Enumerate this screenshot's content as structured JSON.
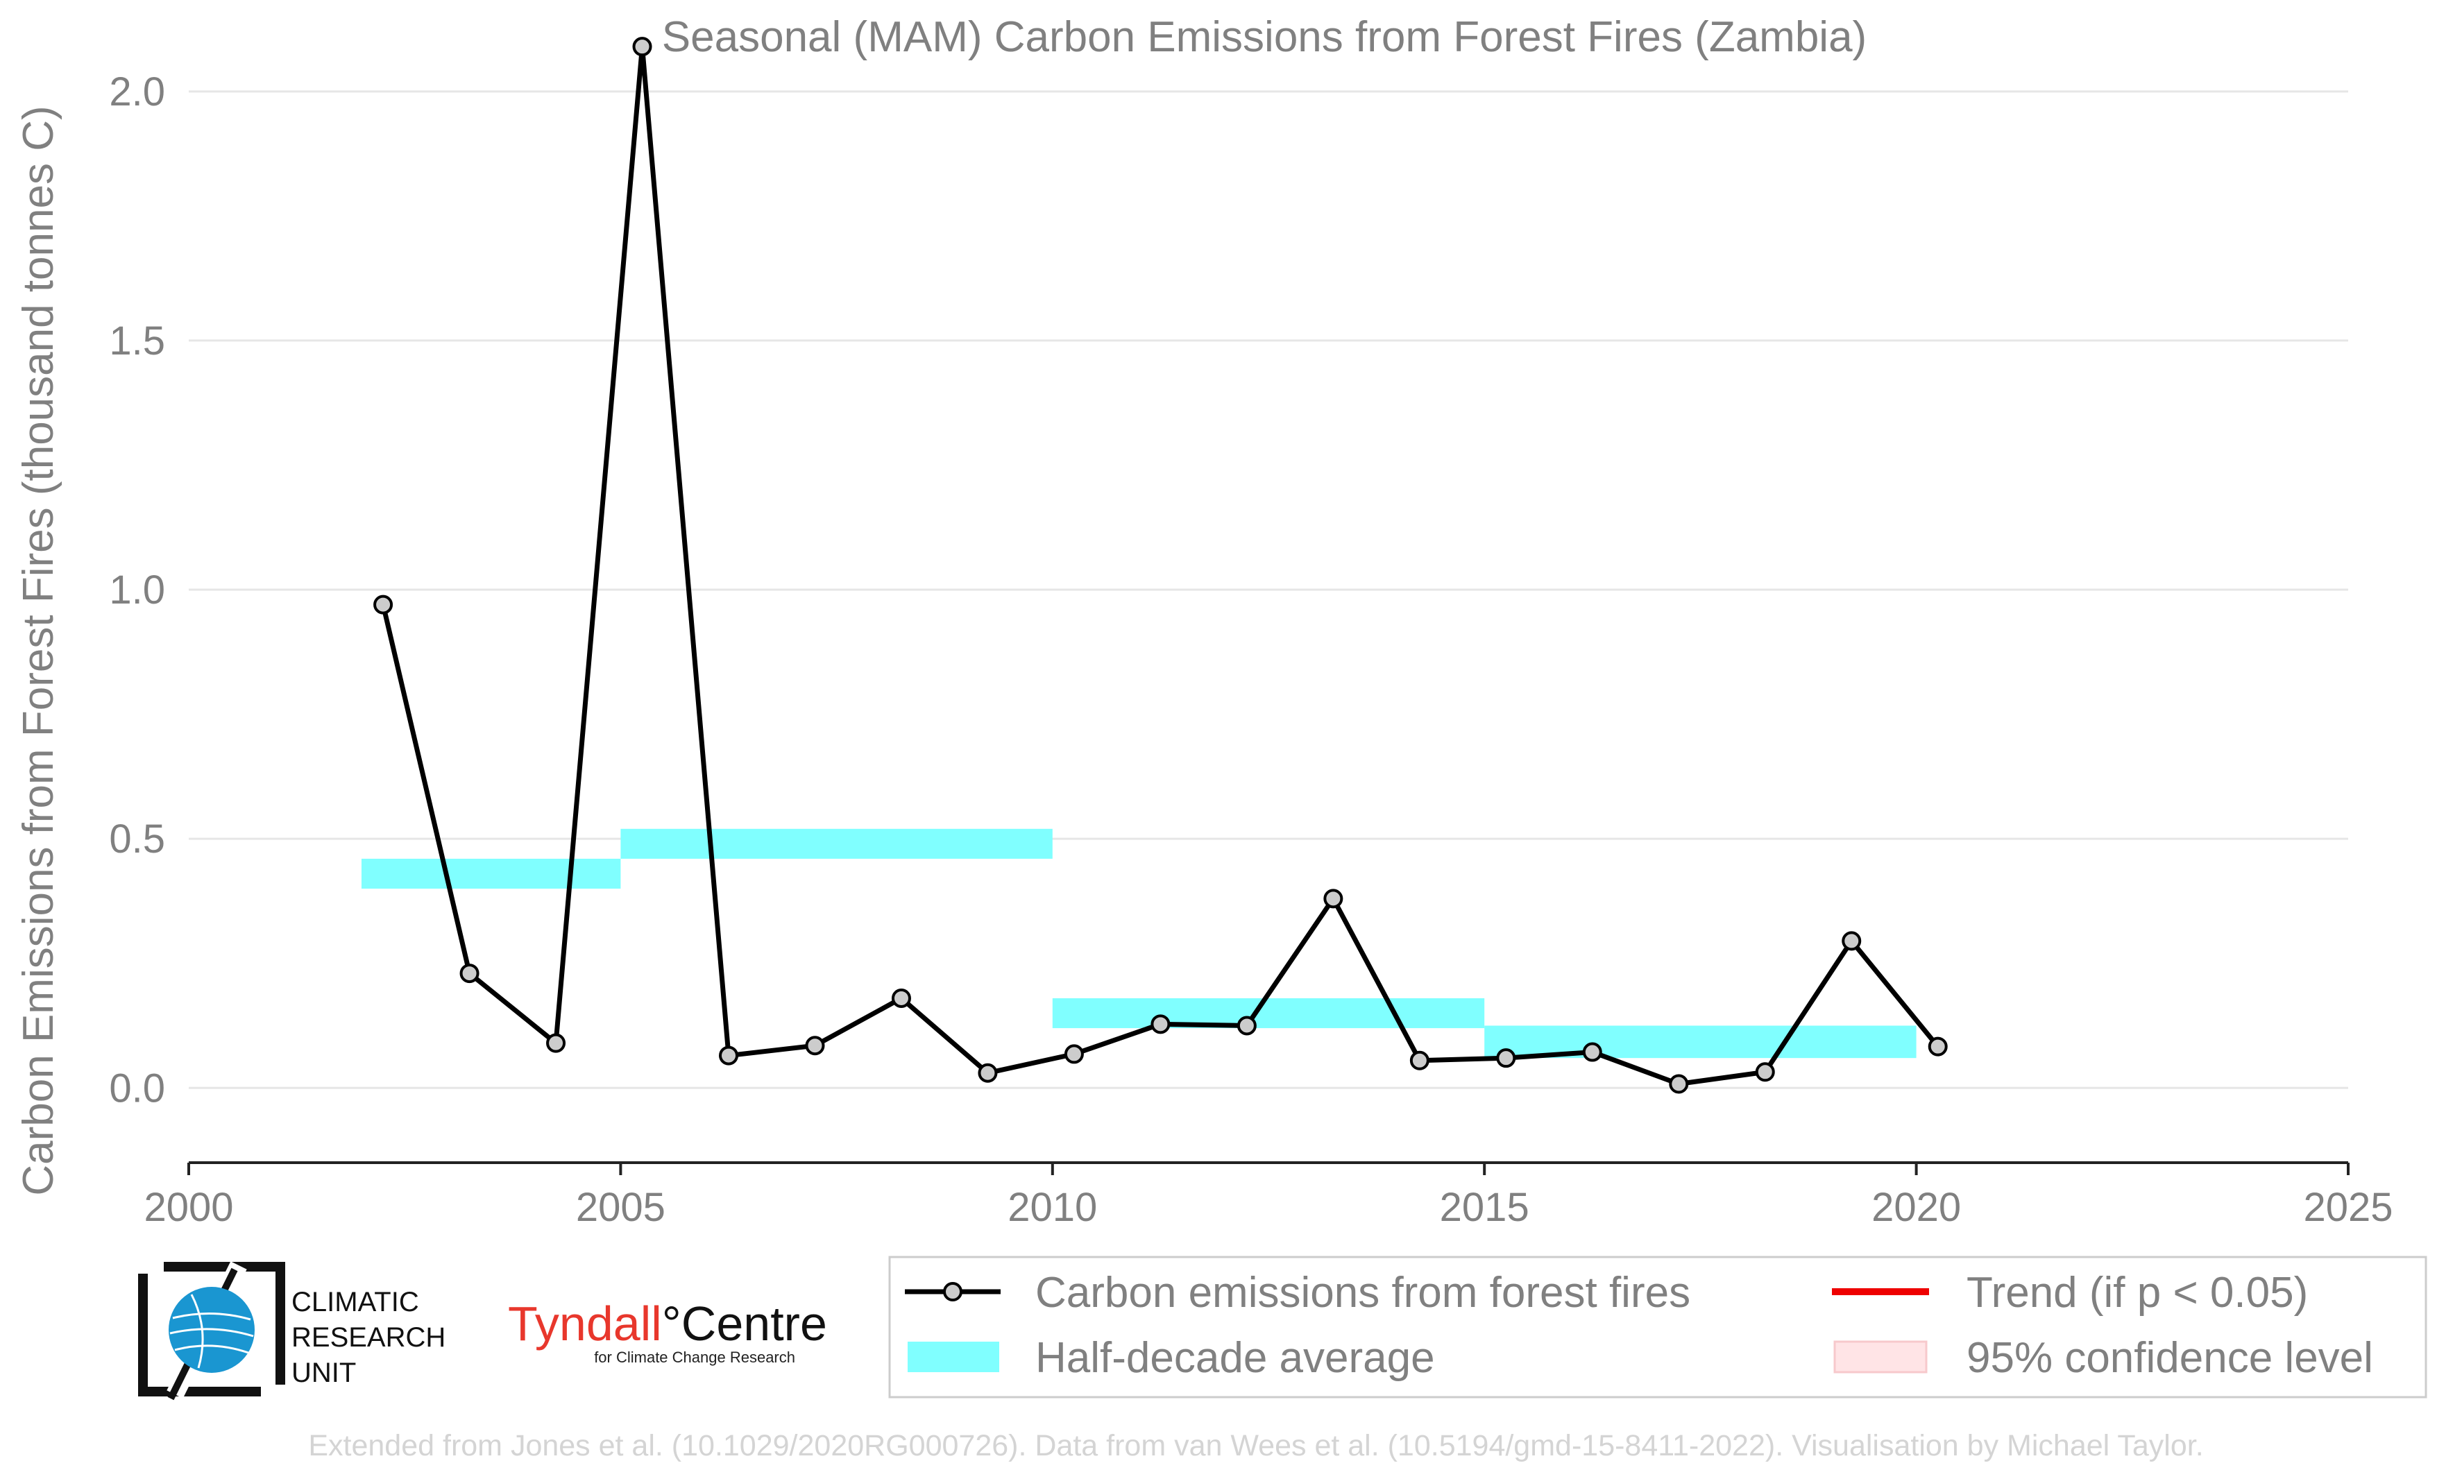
{
  "chart_data": {
    "type": "line",
    "title": "Seasonal (MAM) Carbon Emissions from Forest Fires (Zambia)",
    "xlabel": "",
    "ylabel": "Carbon Emissions from Forest Fires (thousand tonnes C)",
    "xlim": [
      2000,
      2025
    ],
    "ylim": [
      -0.15,
      2.1
    ],
    "x_ticks": [
      2000,
      2005,
      2010,
      2015,
      2020,
      2025
    ],
    "y_ticks": [
      0.0,
      0.5,
      1.0,
      1.5,
      2.0
    ],
    "x_tick_labels": [
      "2000",
      "2005",
      "2010",
      "2015",
      "2020",
      "2025"
    ],
    "y_tick_labels": [
      "0.0",
      "0.5",
      "1.0",
      "1.5",
      "2.0"
    ],
    "grid": "horizontal",
    "legend_position": "bottom",
    "series": [
      {
        "name": "Carbon emissions from forest fires",
        "type": "line",
        "color": "#000000",
        "marker_fill": "#cccccc",
        "x": [
          2002.25,
          2003.25,
          2004.25,
          2005.25,
          2006.25,
          2007.25,
          2008.25,
          2009.25,
          2010.25,
          2011.25,
          2012.25,
          2013.25,
          2014.25,
          2015.25,
          2016.25,
          2017.25,
          2018.25,
          2019.25,
          2020.25
        ],
        "values": [
          0.97,
          0.23,
          0.09,
          2.09,
          0.065,
          0.085,
          0.18,
          0.03,
          0.068,
          0.128,
          0.125,
          0.38,
          0.055,
          0.06,
          0.072,
          0.008,
          0.032,
          0.295,
          0.083
        ]
      },
      {
        "name": "Half-decade average",
        "type": "band",
        "color": "#80ffff",
        "segments": [
          {
            "x0": 2002,
            "x1": 2005,
            "y0": 0.4,
            "y1": 0.46
          },
          {
            "x0": 2005,
            "x1": 2010,
            "y0": 0.46,
            "y1": 0.52
          },
          {
            "x0": 2010,
            "x1": 2015,
            "y0": 0.12,
            "y1": 0.18
          },
          {
            "x0": 2015,
            "x1": 2020,
            "y0": 0.06,
            "y1": 0.125
          }
        ]
      }
    ],
    "legend": [
      {
        "label": "Carbon emissions from forest fires",
        "kind": "line-marker",
        "color": "#000000"
      },
      {
        "label": "Half-decade average",
        "kind": "patch",
        "color": "#80ffff"
      },
      {
        "label": "Trend (if p < 0.05)",
        "kind": "line",
        "color": "#ee0000"
      },
      {
        "label": "95% confidence level",
        "kind": "patch",
        "color": "#ffe4e6"
      }
    ]
  },
  "logos": {
    "cru_lines": [
      "CLIMATIC",
      "RESEARCH",
      "UNIT"
    ],
    "tyndall_main_1": "Tyndall",
    "tyndall_degree": "°",
    "tyndall_main_2": "Centre",
    "tyndall_sub": "for Climate Change Research",
    "tyndall_red": "#e8372c"
  },
  "credit": "Extended from Jones et al. (10.1029/2020RG000726). Data from van Wees et al. (10.5194/gmd-15-8411-2022). Visualisation by Michael Taylor."
}
